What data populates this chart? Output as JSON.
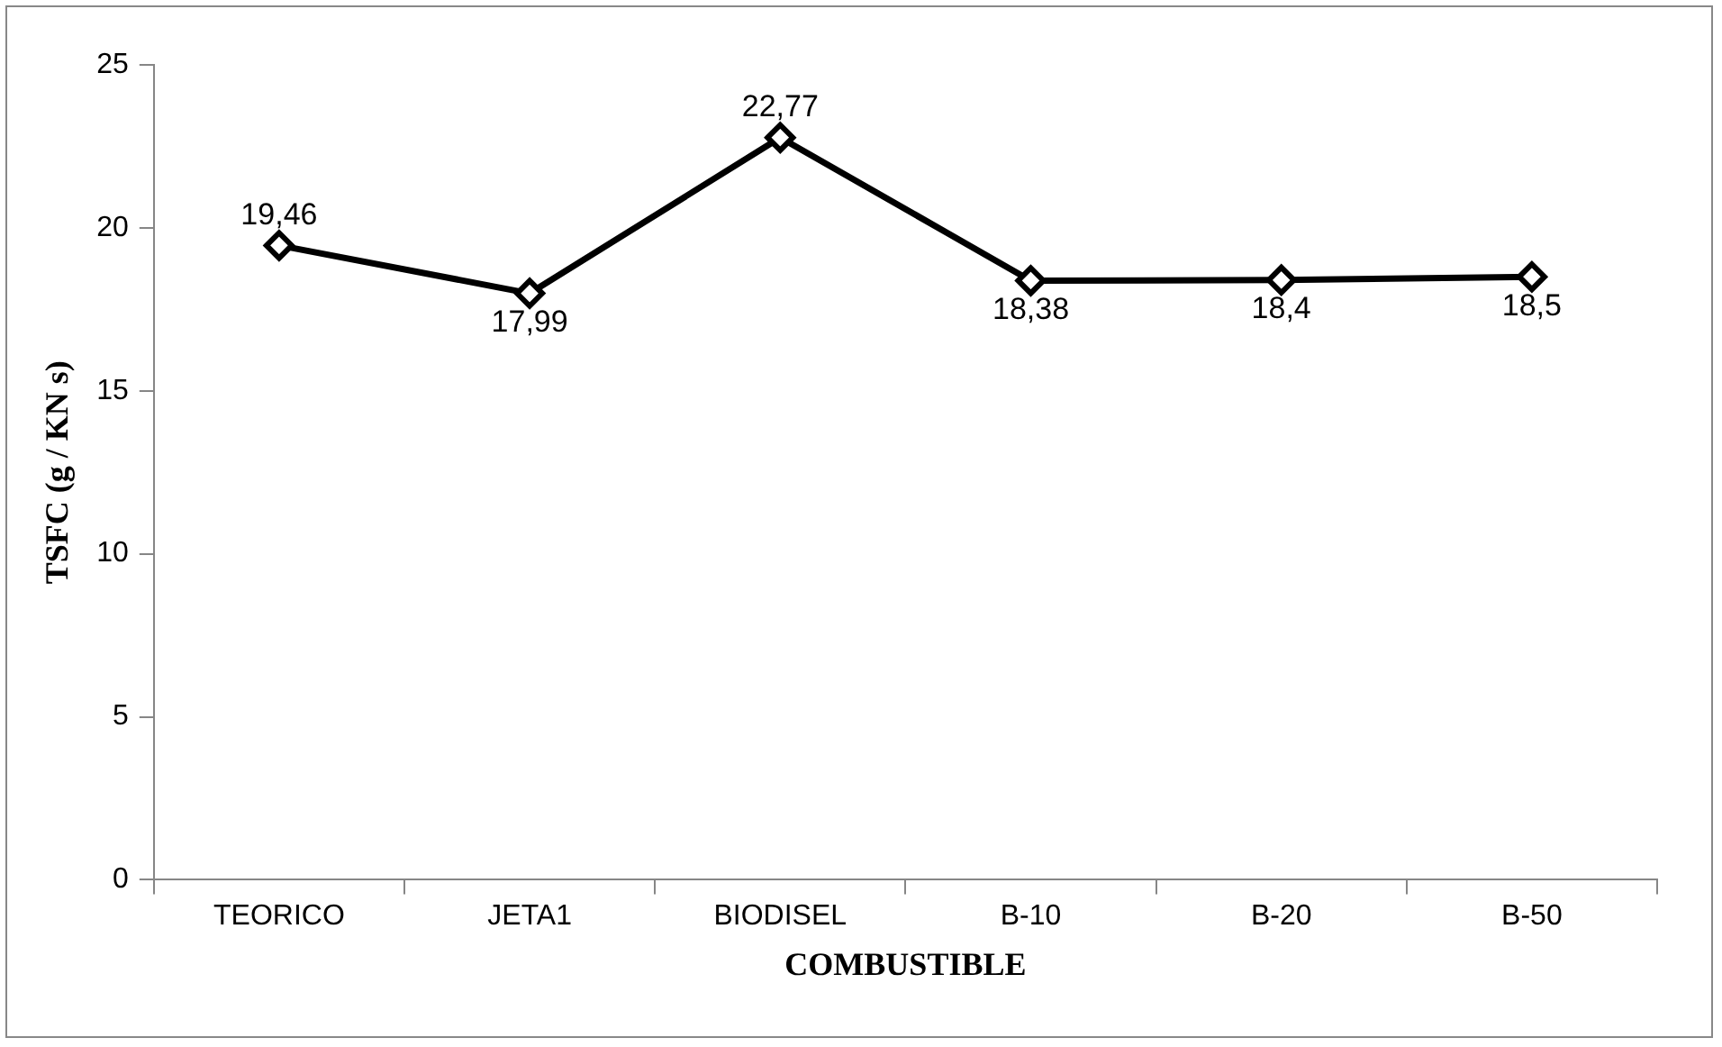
{
  "chart_data": {
    "type": "line",
    "xlabel": "COMBUSTIBLE",
    "ylabel": "TSFC (g / KN s)",
    "categories": [
      "TEORICO",
      "JETA1",
      "BIODISEL",
      "B-10",
      "B-20",
      "B-50"
    ],
    "values": [
      19.46,
      17.99,
      22.77,
      18.38,
      18.4,
      18.5
    ],
    "value_labels": [
      "19,46",
      "17,99",
      "22,77",
      "18,38",
      "18,4",
      "18,5"
    ],
    "color": "#000000",
    "marker": "diamond",
    "line_style": "solid",
    "ylim": [
      0,
      25
    ],
    "yticks": [
      0,
      5,
      10,
      15,
      20,
      25
    ],
    "grid": false,
    "legend": false
  }
}
